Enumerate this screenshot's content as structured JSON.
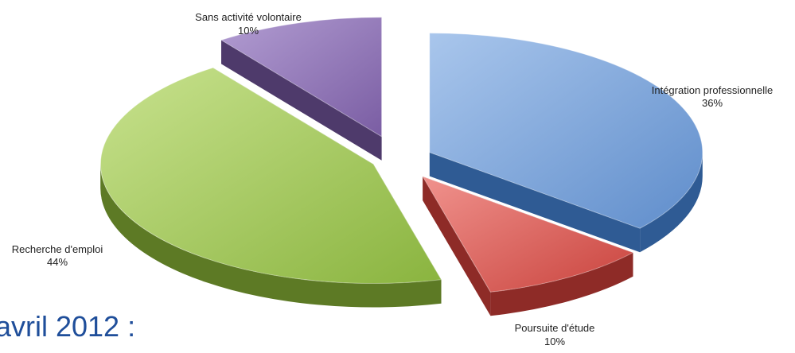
{
  "caption": "-avril 2012 :",
  "colors": {
    "caption": "#1f4e9a"
  },
  "chart_data": {
    "type": "pie",
    "style": "3d-exploded",
    "slices": [
      {
        "label": "Intégration professionnelle",
        "value_label": "36%",
        "value": 36,
        "color_top": "#7ea6dc",
        "color_side": "#2f5b94"
      },
      {
        "label": "Poursuite d'étude",
        "value_label": "10%",
        "value": 10,
        "color_top": "#e06a64",
        "color_side": "#8e2b27"
      },
      {
        "label": "Recherche d'emploi",
        "value_label": "44%",
        "value": 44,
        "color_top": "#a6cd5e",
        "color_side": "#5d7a25"
      },
      {
        "label": "Sans activité volontaire",
        "value_label": "10%",
        "value": 10,
        "color_top": "#9479b8",
        "color_side": "#4e3a6b"
      }
    ]
  }
}
